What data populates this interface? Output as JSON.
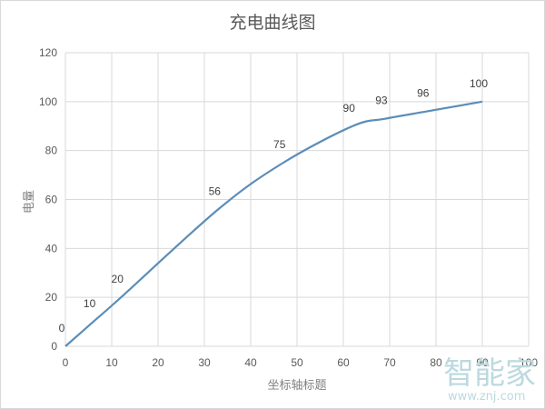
{
  "chart_data": {
    "type": "line",
    "title": "充电曲线图",
    "xlabel": "坐标轴标题",
    "ylabel": "电量",
    "xlim": [
      0,
      100
    ],
    "ylim": [
      0,
      120
    ],
    "x_ticks": [
      "0",
      "10",
      "20",
      "30",
      "40",
      "50",
      "60",
      "70",
      "80",
      "90",
      "100"
    ],
    "y_ticks": [
      "0",
      "20",
      "40",
      "60",
      "80",
      "100",
      "120"
    ],
    "grid": true,
    "legend": null,
    "smooth": true,
    "series": [
      {
        "name": "电量",
        "color": "#5b8db8",
        "x": [
          0,
          6,
          12,
          33,
          47,
          62,
          69,
          78,
          90
        ],
        "values": [
          0,
          10,
          20,
          56,
          75,
          90,
          93,
          96,
          100
        ],
        "data_labels": [
          "0",
          "10",
          "20",
          "56",
          "75",
          "90",
          "93",
          "96",
          "100"
        ]
      }
    ]
  },
  "watermark": {
    "logo_text": "智能家",
    "url_text": "www.znj.com"
  }
}
